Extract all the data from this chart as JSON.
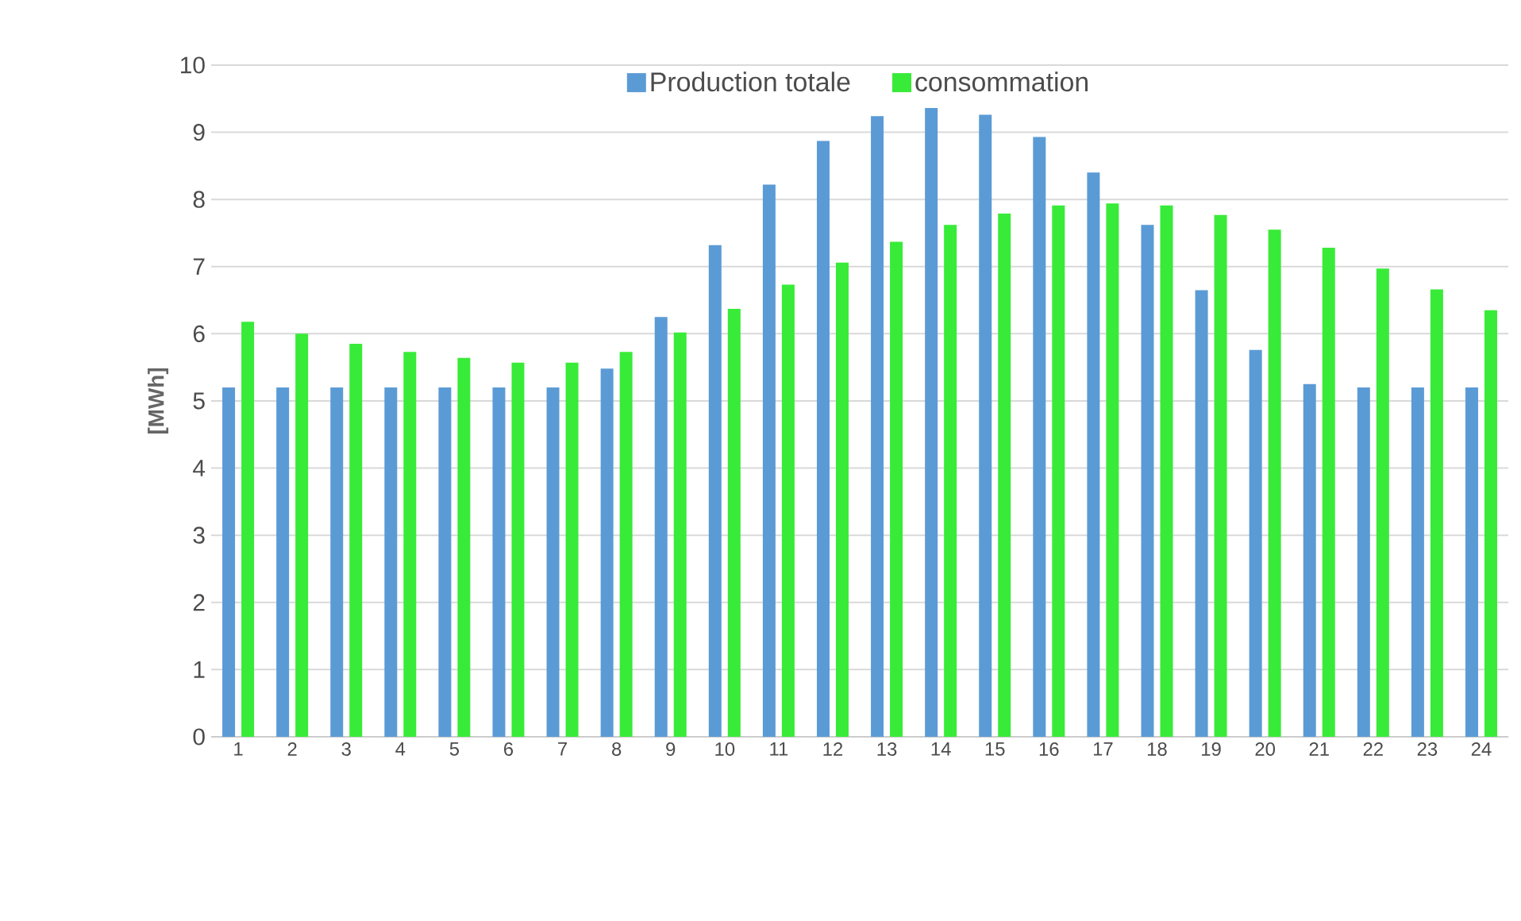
{
  "chart_data": {
    "type": "bar",
    "ylabel": "[MWh]",
    "categories": [
      "1",
      "2",
      "3",
      "4",
      "5",
      "6",
      "7",
      "8",
      "9",
      "10",
      "11",
      "12",
      "13",
      "14",
      "15",
      "16",
      "17",
      "18",
      "19",
      "20",
      "21",
      "22",
      "23",
      "24"
    ],
    "series": [
      {
        "name": "Production totale",
        "color": "#5b9bd5",
        "values": [
          5.2,
          5.2,
          5.2,
          5.2,
          5.2,
          5.2,
          5.2,
          5.48,
          6.25,
          7.32,
          8.22,
          8.87,
          9.24,
          9.36,
          9.26,
          8.93,
          8.4,
          7.62,
          6.65,
          5.76,
          5.25,
          5.2,
          5.2,
          5.2
        ]
      },
      {
        "name": "consommation",
        "color": "#38eb38",
        "values": [
          6.18,
          6.0,
          5.85,
          5.73,
          5.64,
          5.57,
          5.57,
          5.73,
          6.02,
          6.37,
          6.73,
          7.06,
          7.37,
          7.62,
          7.79,
          7.91,
          7.94,
          7.91,
          7.77,
          7.55,
          7.28,
          6.97,
          6.66,
          6.35
        ]
      }
    ],
    "ylim": [
      0,
      10
    ],
    "yticks": [
      0,
      1,
      2,
      3,
      4,
      5,
      6,
      7,
      8,
      9,
      10
    ],
    "grid": "y",
    "legend": "top"
  }
}
